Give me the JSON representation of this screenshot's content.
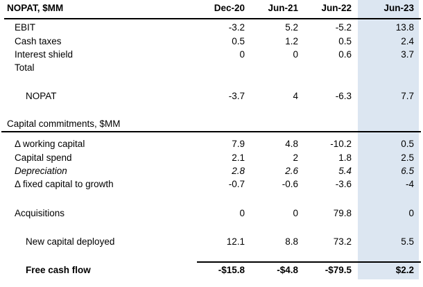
{
  "title": "NOPAT, $MM",
  "columns": [
    "Dec-20",
    "Jun-21",
    "Jun-22",
    "Jun-23"
  ],
  "highlight": {
    "column": "Jun-23",
    "color": "#dce6f1"
  },
  "colors": {
    "text": "#000000",
    "rule": "#000000",
    "background": "#ffffff"
  },
  "rows": [
    {
      "type": "data",
      "label": "EBIT",
      "indent": 1,
      "values": [
        "-3.2",
        "5.2",
        "-5.2",
        "13.8"
      ]
    },
    {
      "type": "data",
      "label": "Cash taxes",
      "indent": 1,
      "values": [
        "0.5",
        "1.2",
        "0.5",
        "2.4"
      ]
    },
    {
      "type": "data",
      "label": "Interest shield",
      "indent": 1,
      "values": [
        "0",
        "0",
        "0.6",
        "3.7"
      ]
    },
    {
      "type": "data",
      "label": "Total",
      "indent": 1,
      "values": [
        "",
        "",
        "",
        ""
      ]
    },
    {
      "type": "spacer"
    },
    {
      "type": "data",
      "label": "NOPAT",
      "indent": 2,
      "values": [
        "-3.7",
        "4",
        "-6.3",
        "7.7"
      ]
    },
    {
      "type": "spacer"
    },
    {
      "type": "section",
      "label": "Capital commitments, $MM"
    },
    {
      "type": "data",
      "label": "Δ working capital",
      "indent": 1,
      "values": [
        "7.9",
        "4.8",
        "-10.2",
        "0.5"
      ]
    },
    {
      "type": "data",
      "label": "Capital spend",
      "indent": 1,
      "values": [
        "2.1",
        "2",
        "1.8",
        "2.5"
      ]
    },
    {
      "type": "data",
      "label": "Depreciation",
      "indent": 1,
      "italic": true,
      "values": [
        "2.8",
        "2.6",
        "5.4",
        "6.5"
      ]
    },
    {
      "type": "data",
      "label": "Δ fixed capital to growth",
      "indent": 1,
      "values": [
        "-0.7",
        "-0.6",
        "-3.6",
        "-4"
      ]
    },
    {
      "type": "spacer"
    },
    {
      "type": "data",
      "label": "Acquisitions",
      "indent": 1,
      "values": [
        "0",
        "0",
        "79.8",
        "0"
      ]
    },
    {
      "type": "spacer"
    },
    {
      "type": "data",
      "label": "New capital deployed",
      "indent": 2,
      "values": [
        "12.1",
        "8.8",
        "73.2",
        "5.5"
      ]
    },
    {
      "type": "spacer"
    },
    {
      "type": "data",
      "label": "Free cash flow",
      "indent": 2,
      "bold": true,
      "values": [
        "-$15.8",
        "-$4.8",
        "-$79.5",
        "$2.2"
      ]
    }
  ]
}
